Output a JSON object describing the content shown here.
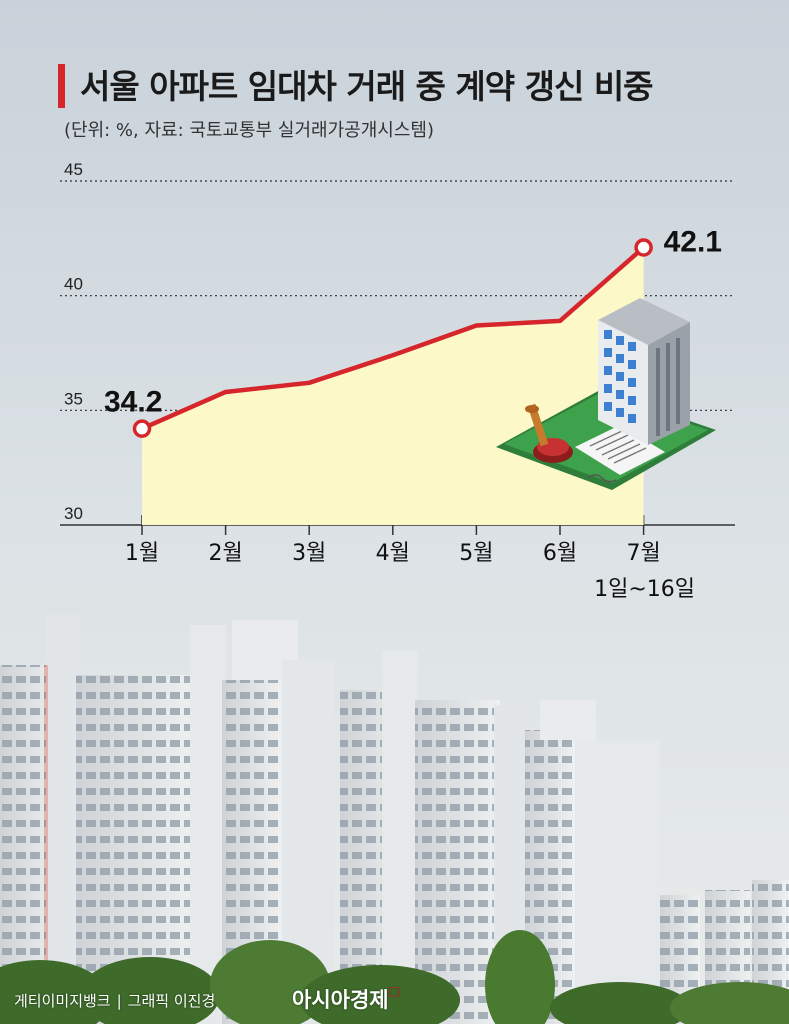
{
  "title": "서울 아파트 임대차 거래 중 계약 갱신 비중",
  "subtitle": "(단위: %, 자료: 국토교통부 실거래가공개시스템)",
  "credit": {
    "photo": "게티이미지뱅크",
    "graphic": "그래픽 이진경",
    "logo": "아시아경제"
  },
  "colors": {
    "line": "#d7262b",
    "fill": "#fdf8c8",
    "accent": "#d7262b"
  },
  "chart_data": {
    "type": "area",
    "categories": [
      "1월",
      "2월",
      "3월",
      "4월",
      "5월",
      "6월",
      "7월"
    ],
    "category_sublabels": [
      "",
      "",
      "",
      "",
      "",
      "",
      "1일~16일"
    ],
    "values": [
      34.2,
      35.8,
      36.2,
      37.4,
      38.7,
      38.9,
      42.1
    ],
    "value_labels": [
      "34.2",
      "",
      "",
      "",
      "",
      "",
      "42.1"
    ],
    "yticks": [
      "45",
      "40",
      "35",
      "30"
    ],
    "ylim": [
      30,
      45
    ],
    "grid": true,
    "xlabel": "",
    "ylabel": ""
  }
}
